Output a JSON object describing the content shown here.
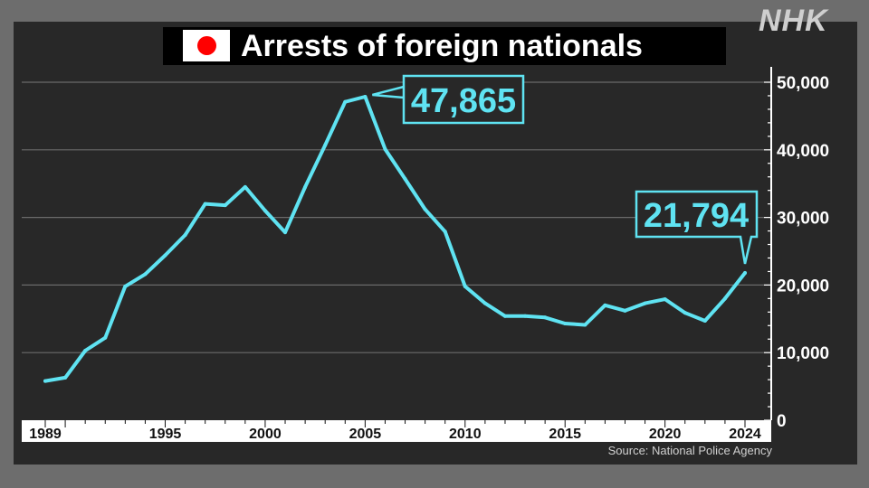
{
  "branding": {
    "logo": "NHK"
  },
  "header": {
    "title": "Arrests of foreign nationals",
    "flag_icon": "japan-flag-icon"
  },
  "source": "Source: National Police Agency",
  "colors": {
    "line": "#5fe3f2",
    "background": "#282828",
    "grid": "#6a6a6a",
    "axis_band": "#ffffff"
  },
  "chart_data": {
    "type": "line",
    "title": "Arrests of foreign nationals",
    "xlabel": "",
    "ylabel": "",
    "xlim": [
      1989,
      2024
    ],
    "ylim": [
      0,
      50000
    ],
    "yticks": [
      0,
      10000,
      20000,
      30000,
      40000,
      50000
    ],
    "ytick_labels": [
      "0",
      "10,000",
      "20,000",
      "30,000",
      "40,000",
      "50,000"
    ],
    "xtick_labels": [
      "1989",
      "1995",
      "2000",
      "2005",
      "2010",
      "2015",
      "2020",
      "2024"
    ],
    "grid": true,
    "x": [
      1989,
      1990,
      1991,
      1992,
      1993,
      1994,
      1995,
      1996,
      1997,
      1998,
      1999,
      2000,
      2001,
      2002,
      2003,
      2004,
      2005,
      2006,
      2007,
      2008,
      2009,
      2010,
      2011,
      2012,
      2013,
      2014,
      2015,
      2016,
      2017,
      2018,
      2019,
      2020,
      2021,
      2022,
      2023,
      2024
    ],
    "values": [
      5800,
      6300,
      10300,
      12200,
      19800,
      21600,
      24400,
      27400,
      32000,
      31800,
      34500,
      31000,
      27800,
      34500,
      40700,
      47100,
      47865,
      40100,
      35700,
      31200,
      27900,
      19800,
      17300,
      15400,
      15400,
      15200,
      14300,
      14100,
      17000,
      16200,
      17300,
      17900,
      15900,
      14700,
      18000,
      21794
    ],
    "annotations": [
      {
        "x": 2005,
        "value": 47865,
        "label": "47,865"
      },
      {
        "x": 2024,
        "value": 21794,
        "label": "21,794"
      }
    ]
  }
}
